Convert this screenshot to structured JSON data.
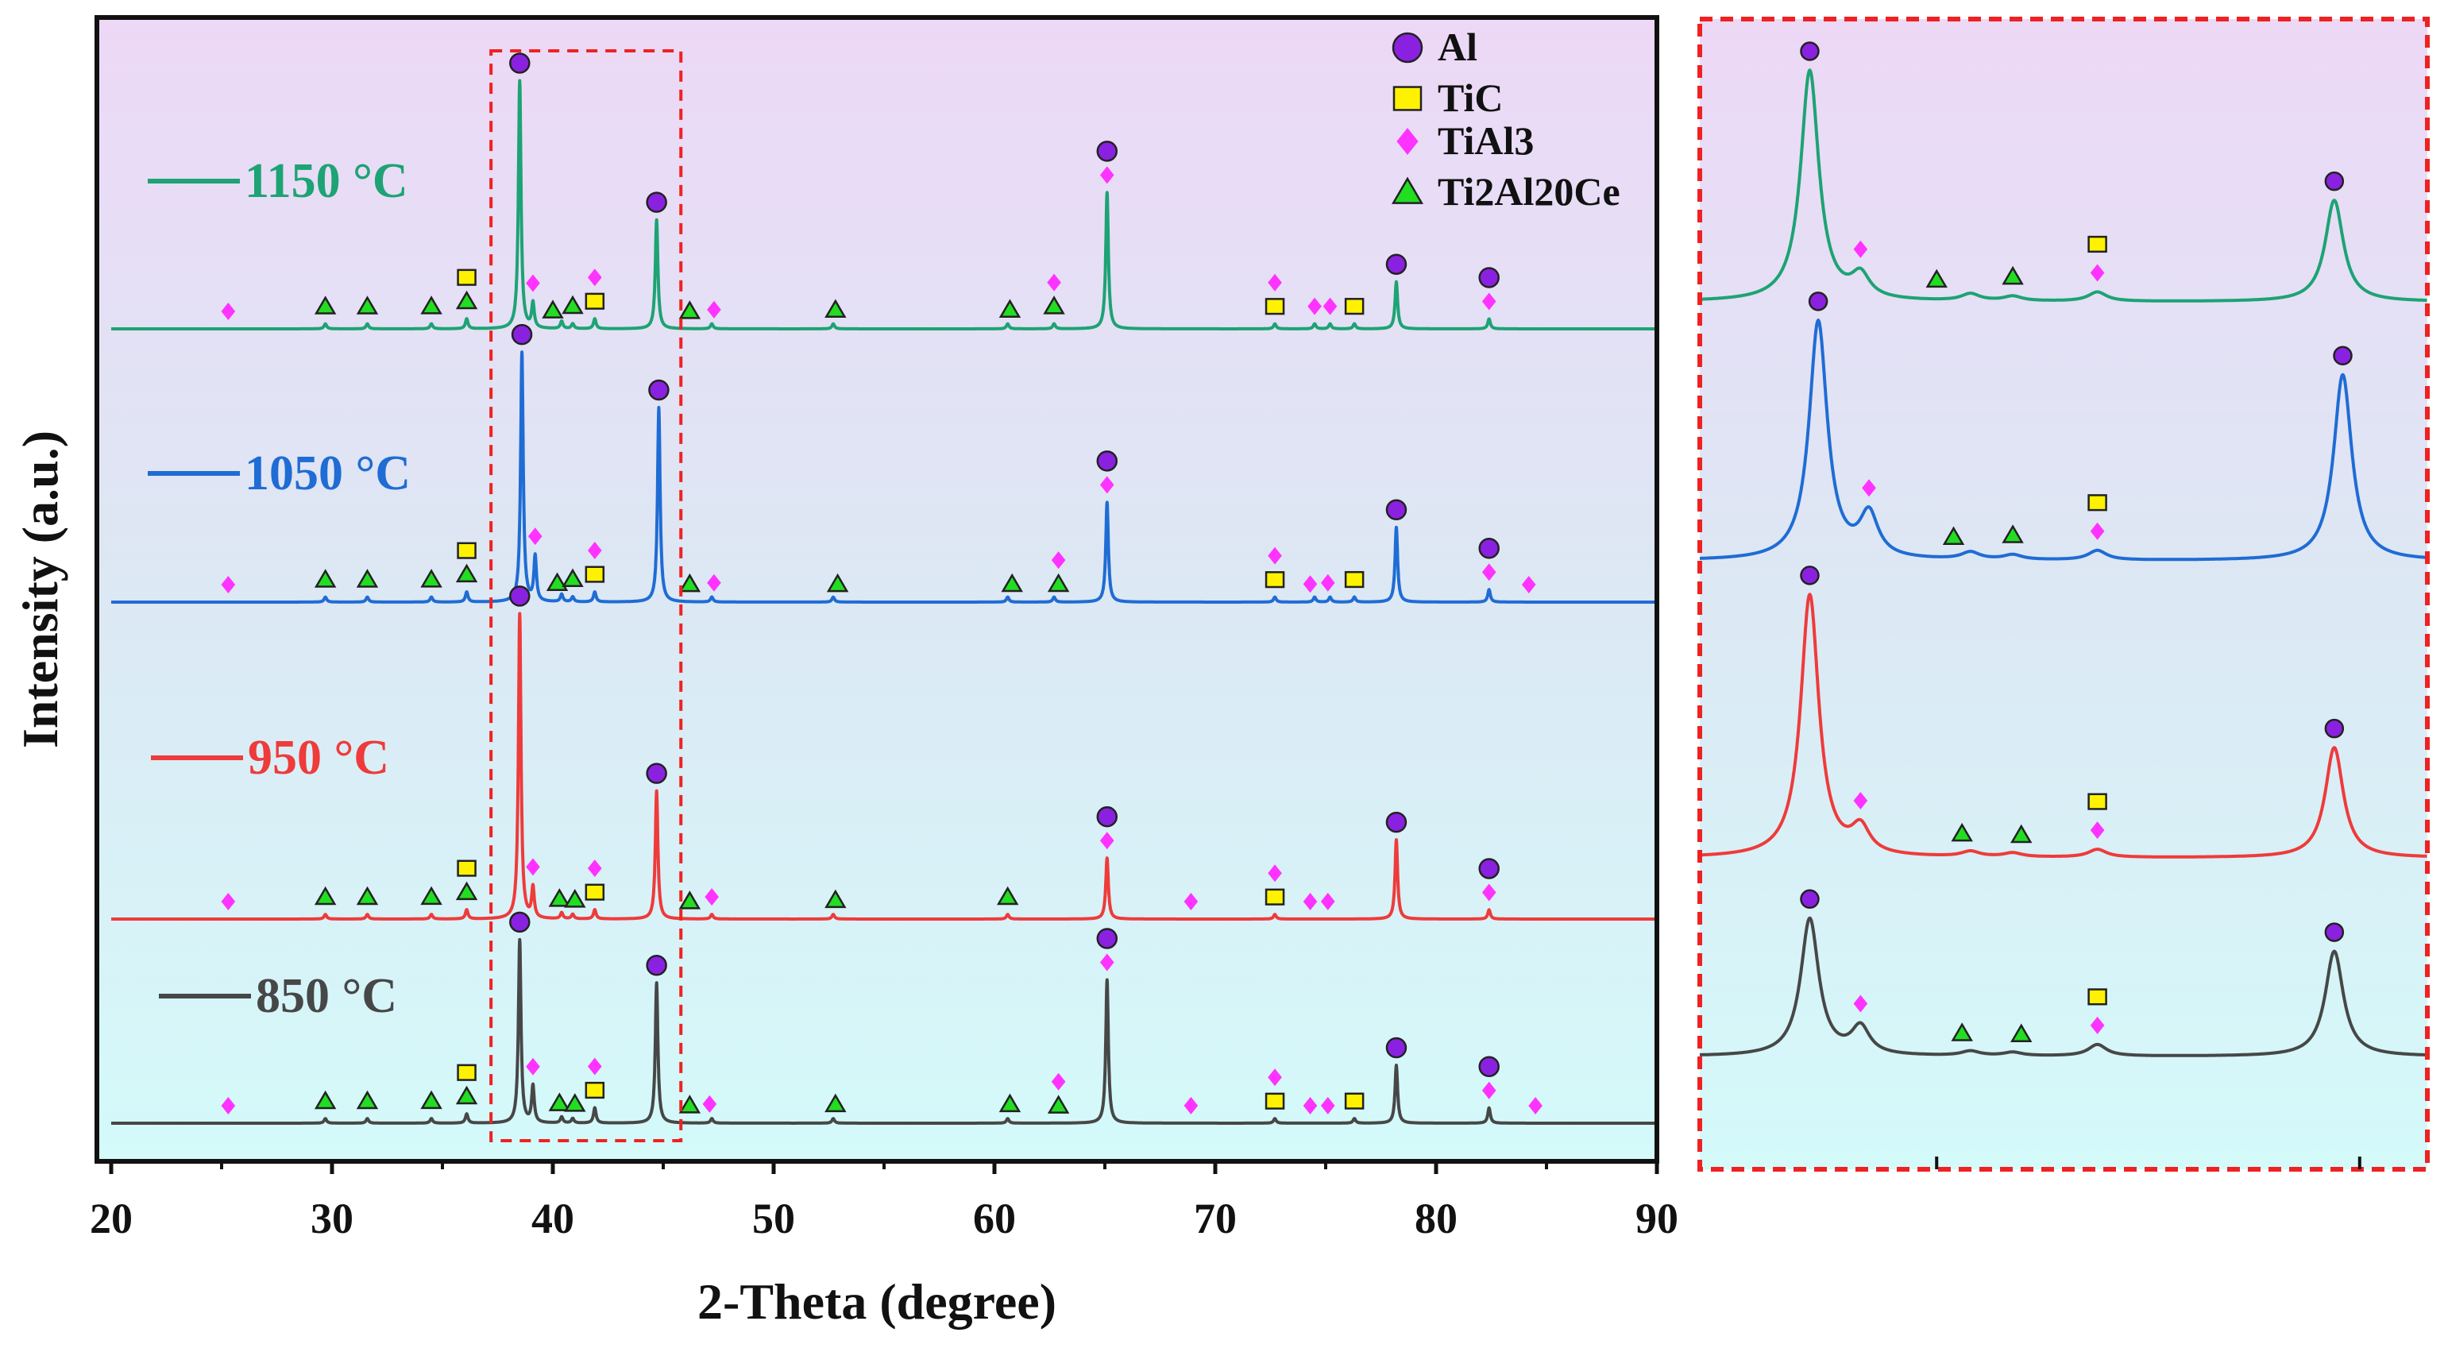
{
  "chart_data": [
    {
      "type": "line",
      "title": "",
      "xlabel": "2-Theta (degree)",
      "ylabel": "Intensity (a.u.)",
      "xlim": [
        20,
        90
      ],
      "xticks": [
        20,
        30,
        40,
        50,
        60,
        70,
        80,
        90
      ],
      "zoom_window": [
        37.2,
        45.8
      ],
      "legend": {
        "placement": "top-right",
        "entries": [
          {
            "name": "Al",
            "marker": "circle",
            "color": "#8B21E0"
          },
          {
            "name": "TiC",
            "marker": "square",
            "color": "#FFF200"
          },
          {
            "name": "TiAl3",
            "marker": "diamond",
            "color": "#FF33FF"
          },
          {
            "name": "Ti2Al20Ce",
            "marker": "triangle",
            "color": "#22DD22"
          }
        ]
      },
      "series": [
        {
          "name": "1150 °C",
          "label": "1150 °C",
          "color": "#1DA374",
          "peaks": [
            [
              38.5,
              1.0
            ],
            [
              44.7,
              0.44
            ],
            [
              65.1,
              0.55
            ],
            [
              78.2,
              0.19
            ],
            [
              39.1,
              0.1
            ],
            [
              41.9,
              0.04
            ],
            [
              36.1,
              0.04
            ],
            [
              40.4,
              0.03
            ],
            [
              29.7,
              0.02
            ],
            [
              31.6,
              0.02
            ],
            [
              34.5,
              0.02
            ],
            [
              40.9,
              0.02
            ],
            [
              47.2,
              0.02
            ],
            [
              52.7,
              0.02
            ],
            [
              60.6,
              0.02
            ],
            [
              62.7,
              0.02
            ],
            [
              72.7,
              0.02
            ],
            [
              74.5,
              0.02
            ],
            [
              75.2,
              0.02
            ],
            [
              76.3,
              0.02
            ],
            [
              82.4,
              0.04
            ]
          ],
          "markers": {
            "circle": [
              38.5,
              44.7,
              65.1,
              78.2,
              82.4
            ],
            "square": [
              36.1,
              41.9,
              72.7,
              76.3
            ],
            "diamond": [
              25.3,
              39.1,
              41.9,
              47.3,
              62.7,
              65.1,
              72.7,
              74.5,
              75.2,
              82.4
            ],
            "triangle": [
              29.7,
              31.6,
              34.5,
              36.1,
              40.0,
              40.9,
              46.2,
              52.8,
              60.7,
              62.7
            ]
          }
        },
        {
          "name": "1050 °C",
          "label": "1050 °C",
          "color": "#1F6CD4",
          "peaks": [
            [
              38.6,
              1.0
            ],
            [
              44.8,
              0.78
            ],
            [
              65.1,
              0.4
            ],
            [
              78.2,
              0.3
            ],
            [
              39.2,
              0.18
            ],
            [
              41.9,
              0.04
            ],
            [
              36.1,
              0.04
            ],
            [
              40.4,
              0.03
            ],
            [
              29.7,
              0.02
            ],
            [
              31.6,
              0.02
            ],
            [
              34.5,
              0.02
            ],
            [
              40.9,
              0.02
            ],
            [
              47.2,
              0.02
            ],
            [
              52.7,
              0.02
            ],
            [
              60.6,
              0.02
            ],
            [
              62.7,
              0.02
            ],
            [
              72.7,
              0.02
            ],
            [
              74.5,
              0.02
            ],
            [
              75.2,
              0.02
            ],
            [
              76.3,
              0.02
            ],
            [
              82.4,
              0.05
            ]
          ],
          "markers": {
            "circle": [
              38.6,
              44.8,
              65.1,
              78.2,
              82.4
            ],
            "square": [
              36.1,
              41.9,
              72.7,
              76.3
            ],
            "diamond": [
              25.3,
              39.2,
              41.9,
              47.3,
              62.9,
              65.1,
              72.7,
              74.3,
              75.1,
              82.4,
              84.2
            ],
            "triangle": [
              29.7,
              31.6,
              34.5,
              36.1,
              40.2,
              40.9,
              46.2,
              52.9,
              60.8,
              62.9
            ]
          }
        },
        {
          "name": "950 °C",
          "label": "950 °C",
          "color": "#EE3B3B",
          "peaks": [
            [
              38.5,
              1.0
            ],
            [
              44.7,
              0.42
            ],
            [
              65.1,
              0.2
            ],
            [
              78.2,
              0.26
            ],
            [
              39.1,
              0.1
            ],
            [
              41.9,
              0.03
            ],
            [
              36.1,
              0.03
            ],
            [
              40.4,
              0.02
            ],
            [
              29.7,
              0.015
            ],
            [
              31.6,
              0.015
            ],
            [
              34.5,
              0.015
            ],
            [
              40.9,
              0.015
            ],
            [
              47.2,
              0.015
            ],
            [
              52.7,
              0.015
            ],
            [
              60.6,
              0.015
            ],
            [
              72.7,
              0.015
            ],
            [
              82.4,
              0.03
            ]
          ],
          "markers": {
            "circle": [
              38.5,
              44.7,
              65.1,
              78.2,
              82.4
            ],
            "square": [
              36.1,
              41.9,
              72.7
            ],
            "diamond": [
              25.3,
              39.1,
              41.9,
              47.2,
              65.1,
              68.9,
              72.7,
              74.3,
              75.1,
              82.4
            ],
            "triangle": [
              29.7,
              31.6,
              34.5,
              36.1,
              40.3,
              41.0,
              46.2,
              52.8,
              60.6
            ]
          }
        },
        {
          "name": "850 °C",
          "label": "850 °C",
          "color": "#474747",
          "peaks": [
            [
              38.5,
              0.6
            ],
            [
              44.7,
              0.46
            ],
            [
              65.1,
              0.47
            ],
            [
              78.2,
              0.19
            ],
            [
              39.1,
              0.12
            ],
            [
              41.9,
              0.05
            ],
            [
              36.1,
              0.03
            ],
            [
              40.4,
              0.02
            ],
            [
              29.7,
              0.015
            ],
            [
              31.6,
              0.015
            ],
            [
              34.5,
              0.015
            ],
            [
              40.9,
              0.015
            ],
            [
              47.2,
              0.015
            ],
            [
              52.7,
              0.015
            ],
            [
              60.6,
              0.015
            ],
            [
              72.7,
              0.015
            ],
            [
              76.3,
              0.015
            ],
            [
              82.4,
              0.05
            ]
          ],
          "markers": {
            "circle": [
              38.5,
              44.7,
              65.1,
              78.2,
              82.4
            ],
            "square": [
              36.1,
              41.9,
              72.7,
              76.3
            ],
            "diamond": [
              25.3,
              39.1,
              41.9,
              47.1,
              62.9,
              65.1,
              68.9,
              72.7,
              74.3,
              75.1,
              82.4,
              84.5
            ],
            "triangle": [
              29.7,
              31.6,
              34.5,
              36.1,
              40.3,
              41.0,
              46.2,
              52.8,
              60.7,
              62.9
            ]
          }
        }
      ]
    },
    {
      "type": "line",
      "title": "",
      "xlabel": "",
      "ylabel": "",
      "xlim": [
        37.2,
        45.8
      ],
      "note": "magnified view of the dashed window (same four series, same order)"
    }
  ]
}
